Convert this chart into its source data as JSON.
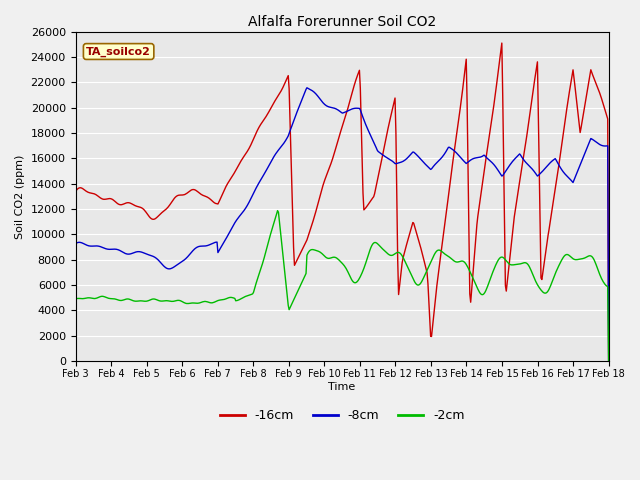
{
  "title": "Alfalfa Forerunner Soil CO2",
  "ylabel": "Soil CO2 (ppm)",
  "xlabel": "Time",
  "annotation": "TA_soilco2",
  "ylim": [
    0,
    26000
  ],
  "yticks": [
    0,
    2000,
    4000,
    6000,
    8000,
    10000,
    12000,
    14000,
    16000,
    18000,
    20000,
    22000,
    24000,
    26000
  ],
  "x_labels": [
    "Feb 3",
    "Feb 4",
    "Feb 5",
    "Feb 6",
    "Feb 7",
    "Feb 8",
    "Feb 9",
    "Feb 10",
    "Feb 11",
    "Feb 12",
    "Feb 13",
    "Feb 14",
    "Feb 15",
    "Feb 16",
    "Feb 17",
    "Feb 18"
  ],
  "colors": {
    "red": "#cc0000",
    "blue": "#0000cc",
    "green": "#00bb00",
    "background": "#e8e8e8",
    "grid": "#ffffff",
    "annotation_bg": "#ffffcc",
    "annotation_border": "#996600"
  },
  "legend": [
    {
      "label": "-16cm",
      "color": "#cc0000"
    },
    {
      "label": "-8cm",
      "color": "#0000cc"
    },
    {
      "label": "-2cm",
      "color": "#00bb00"
    }
  ],
  "num_points": 600
}
